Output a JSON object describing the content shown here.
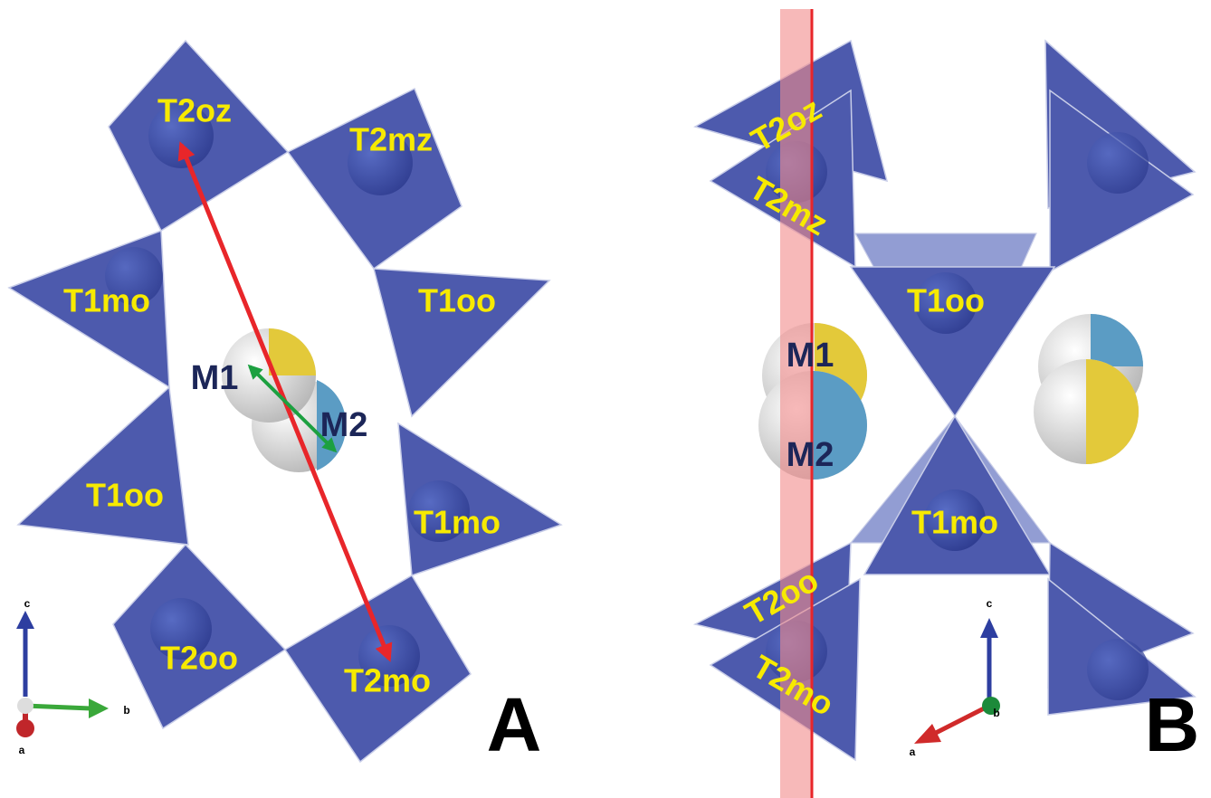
{
  "panels": [
    {
      "letter": "A",
      "tetrahedra": [
        "T2oz",
        "T2mz",
        "T1mo",
        "T1oo",
        "T1oo",
        "T1mo",
        "T2oo",
        "T2mo"
      ],
      "sites": [
        "M1",
        "M2"
      ],
      "axes": [
        "c",
        "b",
        "a"
      ]
    },
    {
      "letter": "B",
      "tetrahedra": [
        "T2oz",
        "T2mz",
        "T1oo",
        "T1mo",
        "T2oo",
        "T2mo"
      ],
      "sites": [
        "M1",
        "M2"
      ],
      "axes": [
        "c",
        "a",
        "b"
      ]
    }
  ]
}
